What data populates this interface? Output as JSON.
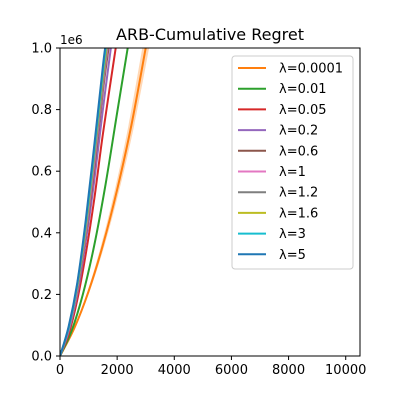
{
  "chart_data": {
    "type": "line",
    "title": "ARB-Cumulative Regret",
    "xlabel": "",
    "ylabel": "",
    "xlim": [
      0,
      10500
    ],
    "ylim": [
      0,
      1000000
    ],
    "xticks": [
      0,
      2000,
      4000,
      6000,
      8000,
      10000
    ],
    "xtick_labels": [
      "0",
      "2000",
      "4000",
      "6000",
      "8000",
      "10000"
    ],
    "yticks": [
      0,
      200000,
      400000,
      600000,
      800000,
      1000000
    ],
    "ytick_labels": [
      "0.0",
      "0.2",
      "0.4",
      "0.6",
      "0.8",
      "1.0"
    ],
    "y_offset_label": "1e6",
    "grid": false,
    "legend_position": "upper right",
    "series": [
      {
        "name": "λ=0.0001",
        "color": "#ff7f0e",
        "band": true,
        "x": [
          0,
          500,
          1000,
          1500,
          2000,
          2500,
          3000
        ],
        "y": [
          0,
          90000,
          210000,
          360000,
          540000,
          750000,
          1000000
        ]
      },
      {
        "name": "λ=0.01",
        "color": "#2ca02c",
        "x": [
          0,
          400,
          800,
          1200,
          1600,
          2000,
          2370
        ],
        "y": [
          0,
          80000,
          200000,
          360000,
          560000,
          790000,
          1000000
        ]
      },
      {
        "name": "λ=0.05",
        "color": "#d62728",
        "x": [
          0,
          300,
          600,
          900,
          1200,
          1500,
          1950
        ],
        "y": [
          0,
          70000,
          180000,
          330000,
          510000,
          720000,
          1000000
        ]
      },
      {
        "name": "λ=0.2",
        "color": "#9467bd",
        "x": [
          0,
          300,
          600,
          900,
          1200,
          1500,
          1780
        ],
        "y": [
          0,
          80000,
          200000,
          370000,
          570000,
          800000,
          1000000
        ]
      },
      {
        "name": "λ=0.6",
        "color": "#8c564b",
        "x": [
          0,
          300,
          600,
          900,
          1200,
          1500,
          1700
        ],
        "y": [
          0,
          85000,
          210000,
          390000,
          610000,
          860000,
          1000000
        ]
      },
      {
        "name": "λ=1",
        "color": "#e377c2",
        "x": [
          0,
          300,
          600,
          900,
          1200,
          1500,
          1660
        ],
        "y": [
          0,
          85000,
          215000,
          400000,
          630000,
          880000,
          1000000
        ]
      },
      {
        "name": "λ=1.2",
        "color": "#7f7f7f",
        "x": [
          0,
          300,
          600,
          900,
          1200,
          1500,
          1640
        ],
        "y": [
          0,
          88000,
          220000,
          410000,
          645000,
          890000,
          1000000
        ]
      },
      {
        "name": "λ=1.6",
        "color": "#bcbd22",
        "x": [
          0,
          300,
          600,
          900,
          1200,
          1500,
          1620
        ],
        "y": [
          0,
          90000,
          225000,
          420000,
          660000,
          910000,
          1000000
        ]
      },
      {
        "name": "λ=3",
        "color": "#17becf",
        "x": [
          0,
          300,
          600,
          900,
          1200,
          1500,
          1600
        ],
        "y": [
          0,
          90000,
          230000,
          430000,
          670000,
          925000,
          1000000
        ]
      },
      {
        "name": "λ=5",
        "color": "#1f77b4",
        "x": [
          0,
          300,
          600,
          900,
          1200,
          1500,
          1580
        ],
        "y": [
          0,
          95000,
          235000,
          440000,
          685000,
          940000,
          1000000
        ]
      }
    ]
  }
}
